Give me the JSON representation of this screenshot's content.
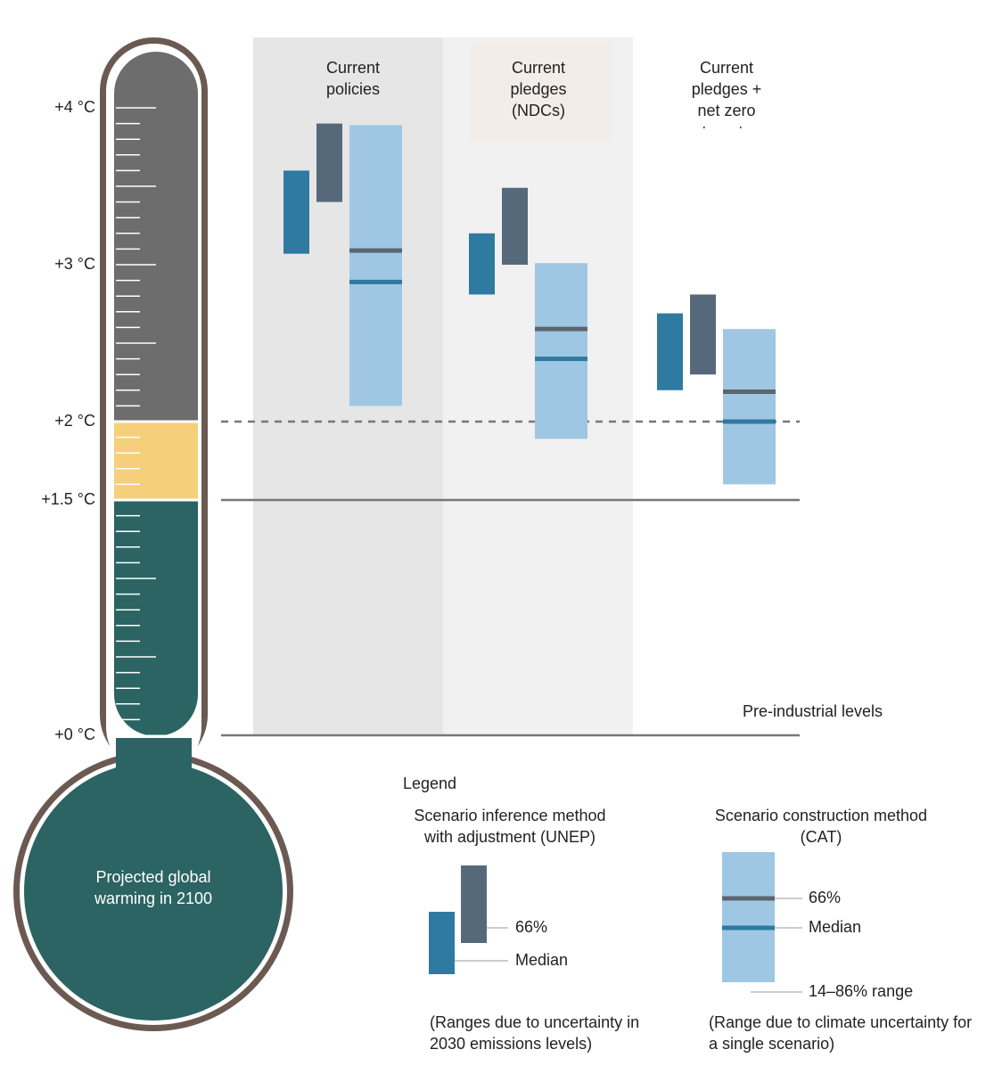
{
  "chart_data": {
    "type": "range",
    "categories": [
      "Current policies",
      "Current pledges (NDCs)",
      "Current pledges + net zero targets"
    ],
    "ylim": [
      0,
      4.35
    ],
    "yticks": [
      {
        "value": 0,
        "label": "+0 °C"
      },
      {
        "value": 1.5,
        "label": "+1.5 °C"
      },
      {
        "value": 2,
        "label": "+2 °C"
      },
      {
        "value": 3,
        "label": "+3 °C"
      },
      {
        "value": 4,
        "label": "+4 °C"
      }
    ],
    "minor_yticks": [
      0.1,
      0.2,
      0.3,
      0.4,
      0.5,
      0.6,
      0.7,
      0.8,
      0.9,
      1.0,
      1.1,
      1.2,
      1.3,
      1.4,
      1.6,
      1.7,
      1.8,
      1.9,
      2.1,
      2.2,
      2.3,
      2.4,
      2.5,
      2.6,
      2.7,
      2.8,
      2.9,
      3.1,
      3.2,
      3.3,
      3.4,
      3.5,
      3.6,
      3.7,
      3.8,
      3.9
    ],
    "zone_breaks": [
      1.5,
      2
    ],
    "zone_colors": [
      "#2b6462",
      "#f5cf7a",
      "#6d6d6d"
    ],
    "reference_lines": [
      {
        "value": 2,
        "style": "dashed"
      },
      {
        "value": 1.5,
        "style": "solid"
      },
      {
        "value": 0,
        "style": "solid",
        "label": "Pre-industrial levels"
      }
    ],
    "thermometer_label": "Projected global warming in 2100",
    "legend_title": "Legend",
    "methods": [
      {
        "name": "Scenario inference method with adjustment (UNEP)",
        "note": "(Ranges due to uncertainty in 2030 emissions levels)",
        "series": [
          {
            "name": "66%",
            "color": "#56697a",
            "low": [
              3.4,
              3.0,
              2.3
            ],
            "high": [
              3.9,
              3.49,
              2.81
            ]
          },
          {
            "name": "Median",
            "color": "#2f7aa0",
            "low": [
              3.07,
              2.81,
              2.2
            ],
            "high": [
              3.6,
              3.2,
              2.69
            ]
          }
        ]
      },
      {
        "name": "Scenario construction method (CAT)",
        "note": "(Range due to climate uncertainty for a single scenario)",
        "series": [
          {
            "name": "14–86% range",
            "color": "#9fc7e3",
            "low": [
              2.1,
              1.89,
              1.6
            ],
            "high": [
              3.89,
              3.01,
              2.59
            ]
          },
          {
            "name": "66%",
            "color": "#5c6670",
            "values": [
              3.09,
              2.59,
              2.19
            ]
          },
          {
            "name": "Median",
            "color": "#2f7aa0",
            "values": [
              2.89,
              2.4,
              2.0
            ]
          }
        ]
      }
    ]
  }
}
